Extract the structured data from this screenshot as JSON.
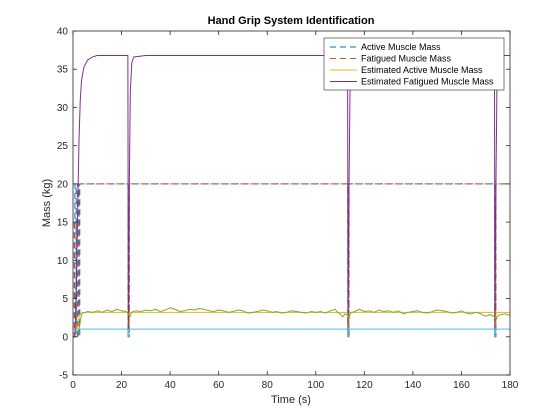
{
  "chart_data": {
    "type": "line",
    "title": "Hand Grip System Identification",
    "xlabel": "Time (s)",
    "ylabel": "Mass (kg)",
    "xlim": [
      0,
      180
    ],
    "ylim": [
      -5,
      40
    ],
    "xticks": [
      0,
      20,
      40,
      60,
      80,
      100,
      120,
      140,
      160,
      180
    ],
    "yticks": [
      -5,
      0,
      5,
      10,
      15,
      20,
      25,
      30,
      35,
      40
    ],
    "grid": false,
    "legend_position": "top-right",
    "series": [
      {
        "name": "Active Muscle Mass",
        "color": "#0072BD",
        "style": "dashed",
        "x": [
          0,
          0.8,
          0.8,
          1.3,
          1.3,
          1.8,
          1.8,
          2.3,
          2.3,
          2.8,
          2.8,
          3.2,
          3.2,
          22.7,
          22.7,
          23.2,
          23.2,
          113.2,
          113.2,
          113.7,
          113.7,
          173.7,
          173.7,
          174.2,
          174.2,
          180
        ],
        "y": [
          0,
          0,
          20,
          20,
          0,
          0,
          20,
          20,
          0,
          0,
          20,
          20,
          20,
          20,
          0,
          0,
          20,
          20,
          0,
          0,
          20,
          20,
          0,
          0,
          20,
          20
        ]
      },
      {
        "name": "Fatigued Muscle Mass",
        "color": "#D95319",
        "style": "dashed",
        "x": [
          0,
          0.5,
          0.5,
          1.5,
          1.5,
          2.5,
          2.5,
          3.0,
          3.0,
          22.7,
          22.7,
          23.2,
          23.2,
          113.2,
          113.2,
          113.7,
          113.7,
          173.7,
          173.7,
          174.2,
          174.2,
          180
        ],
        "y": [
          0,
          0,
          15,
          15,
          1,
          1,
          20,
          20,
          20,
          20,
          0,
          0,
          20,
          20,
          0,
          0,
          20,
          20,
          0,
          0,
          20,
          20
        ]
      },
      {
        "name": "Estimated Active Muscle Mass",
        "color": "#EDB120",
        "style": "solid",
        "x": [
          0,
          1,
          2,
          2.6,
          3.2,
          5,
          10,
          20,
          22.7,
          23,
          23.3,
          30,
          60,
          90,
          113.2,
          113.5,
          113.8,
          140,
          173.7,
          174,
          174.3,
          180
        ],
        "y": [
          0,
          0.3,
          1.5,
          2.8,
          3.1,
          3.2,
          3.2,
          3.2,
          3.2,
          1.0,
          3.2,
          3.2,
          3.2,
          3.2,
          3.2,
          1.0,
          3.2,
          3.2,
          3.2,
          1.0,
          3.2,
          3.2
        ]
      },
      {
        "name": "Estimated Fatigued Muscle Mass",
        "color": "#7E2F8E",
        "style": "solid",
        "x": [
          0,
          0.8,
          1.5,
          2.0,
          2.5,
          3.0,
          3.5,
          4.5,
          6.0,
          8.0,
          10,
          22.6,
          22.8,
          23.2,
          23.6,
          24.2,
          25,
          30,
          113.1,
          113.3,
          113.7,
          114.1,
          114.7,
          116,
          173.6,
          173.8,
          174.2,
          174.6,
          175.2,
          176,
          180
        ],
        "y": [
          0,
          0,
          8,
          18,
          26,
          31,
          33.5,
          35.3,
          36.2,
          36.6,
          36.8,
          36.8,
          0.5,
          20,
          32,
          35.8,
          36.6,
          36.8,
          36.8,
          0.5,
          20,
          32,
          35.8,
          36.8,
          36.8,
          0.5,
          20,
          32,
          35.8,
          36.8,
          36.8
        ]
      },
      {
        "name": "",
        "color": "#77AC30",
        "style": "solid",
        "x": [
          0,
          2,
          3,
          3.5,
          4,
          6,
          8,
          10,
          12,
          14,
          16,
          18,
          20,
          22,
          22.7,
          23.5,
          24,
          26,
          28,
          30,
          32,
          34,
          36,
          38,
          40,
          42,
          44,
          46,
          48,
          50,
          52,
          54,
          56,
          58,
          60,
          62,
          64,
          66,
          68,
          70,
          72,
          74,
          76,
          78,
          80,
          82,
          84,
          86,
          88,
          90,
          92,
          94,
          96,
          98,
          100,
          102,
          104,
          106,
          108,
          109,
          110,
          111,
          112,
          113.2,
          113.8,
          114.2,
          116,
          118,
          120,
          122,
          124,
          126,
          128,
          130,
          132,
          134,
          136,
          138,
          140,
          142,
          144,
          146,
          148,
          150,
          152,
          154,
          156,
          158,
          160,
          162,
          164,
          166,
          168,
          170,
          172,
          173.7,
          174.3,
          174.8,
          176,
          178,
          180
        ],
        "y": [
          0,
          0,
          2.0,
          3.0,
          3.1,
          3.3,
          3.2,
          3.4,
          3.2,
          3.5,
          3.3,
          3.6,
          3.4,
          3.3,
          3.0,
          2.6,
          3.2,
          3.4,
          3.3,
          3.5,
          3.4,
          3.6,
          3.3,
          3.5,
          3.8,
          3.6,
          3.3,
          3.4,
          3.6,
          3.5,
          3.7,
          3.6,
          3.4,
          3.3,
          3.5,
          3.4,
          3.2,
          3.3,
          3.5,
          3.4,
          3.1,
          3.2,
          3.3,
          3.5,
          3.4,
          3.2,
          3.3,
          3.1,
          3.2,
          3.4,
          3.3,
          3.2,
          3.1,
          3.3,
          3.2,
          3.3,
          3.1,
          3.4,
          3.6,
          3.2,
          3.0,
          2.6,
          3.0,
          2.8,
          2.4,
          3.1,
          3.3,
          3.6,
          3.3,
          3.4,
          3.2,
          3.5,
          3.3,
          3.4,
          3.2,
          3.4,
          3.0,
          3.2,
          3.3,
          3.4,
          3.2,
          3.1,
          3.3,
          3.5,
          3.4,
          3.3,
          3.1,
          3.2,
          3.4,
          3.1,
          3.0,
          3.2,
          3.0,
          2.7,
          2.9,
          2.6,
          2.2,
          2.7,
          2.9,
          3.0,
          2.8
        ]
      },
      {
        "name": "",
        "color": "#4DBEEE",
        "style": "solid",
        "x": [
          0,
          22.6,
          22.6,
          22.9,
          22.9,
          113.1,
          113.1,
          113.4,
          113.4,
          173.6,
          173.6,
          173.9,
          173.9,
          180
        ],
        "y": [
          1.0,
          1.0,
          0,
          0,
          1.0,
          1.0,
          0,
          0,
          1.0,
          1.0,
          0,
          0,
          1.0,
          1.0
        ]
      }
    ]
  }
}
